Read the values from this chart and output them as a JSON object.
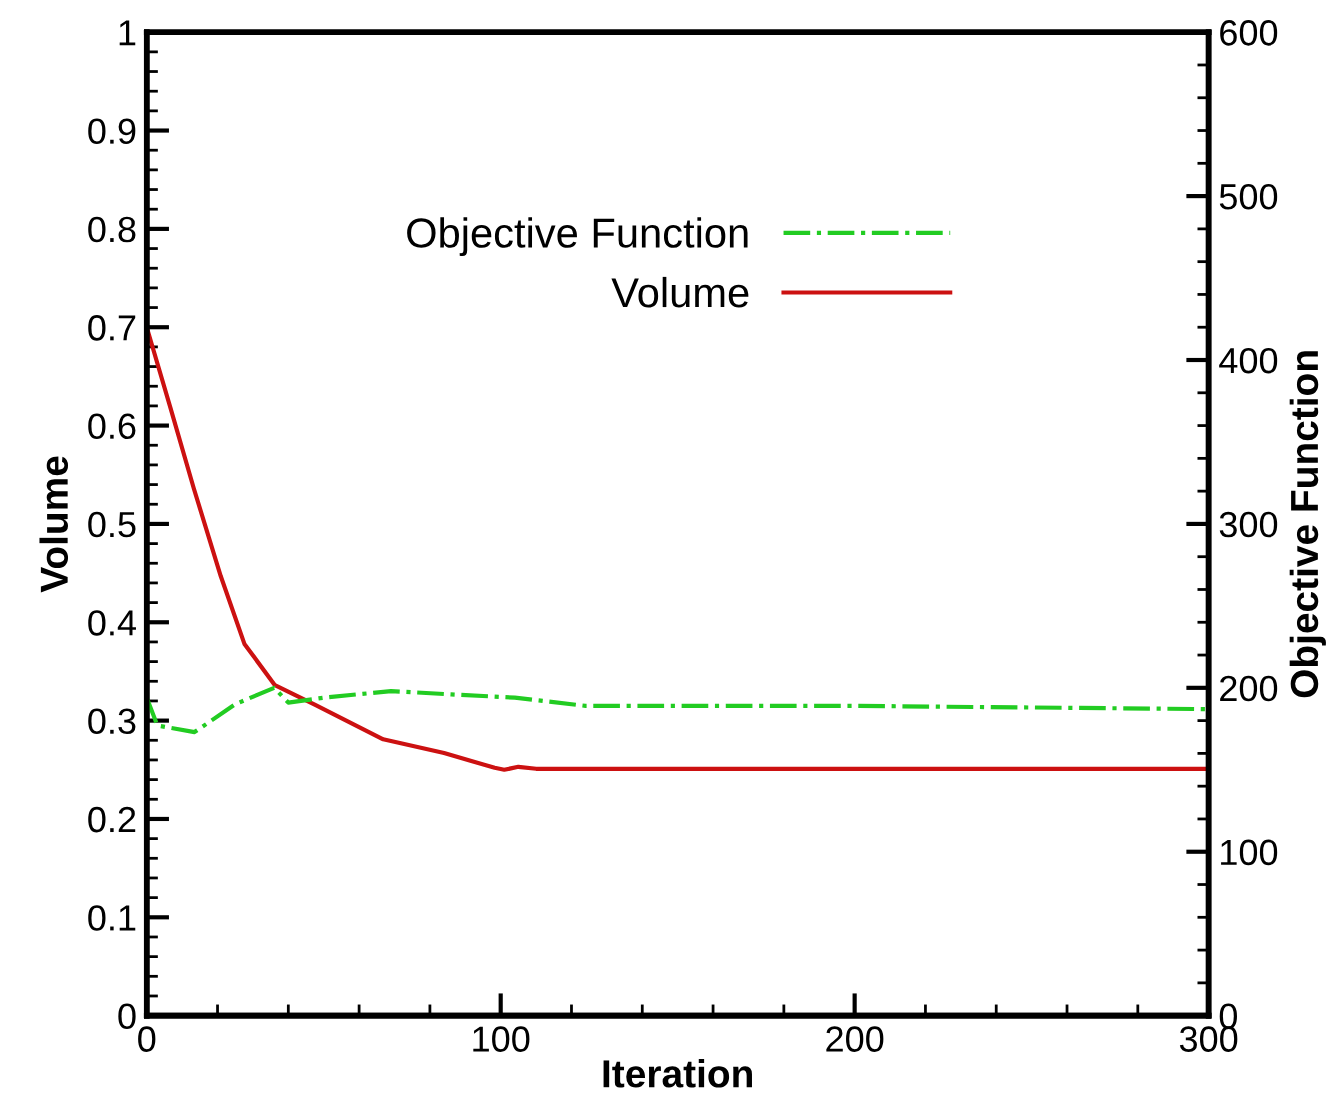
{
  "chart_data": {
    "type": "line",
    "xlabel": "Iteration",
    "ylabel": "Volume",
    "y2label": "Objective Function",
    "xlim": [
      0,
      300
    ],
    "xticks": [
      0,
      100,
      200,
      300
    ],
    "ylim": [
      0,
      1
    ],
    "yticks": [
      0,
      0.1,
      0.2,
      0.3,
      0.4,
      0.5,
      0.6,
      0.7,
      0.8,
      0.9,
      1
    ],
    "y2lim": [
      0,
      600
    ],
    "y2ticks": [
      0,
      100,
      200,
      300,
      400,
      500,
      600
    ],
    "legend": "top",
    "grid": false,
    "series": [
      {
        "name": "Objective Function",
        "color": "#22cc22",
        "axis": "y2",
        "line_style": "dashdot",
        "x": [
          0,
          3,
          13.5,
          25,
          36,
          40,
          50,
          69,
          86,
          104,
          124,
          150,
          200,
          250,
          300
        ],
        "values": [
          194,
          177,
          173,
          190,
          200,
          191,
          194,
          198,
          196,
          194,
          189,
          189,
          189,
          188,
          187
        ]
      },
      {
        "name": "Volume",
        "color": "#cc1111",
        "axis": "y",
        "line_style": "solid",
        "x": [
          0,
          6.7,
          13.3,
          20.9,
          27.6,
          36.2,
          47.6,
          66.8,
          84,
          98.3,
          101,
          105,
          110,
          150,
          200,
          250,
          300
        ],
        "values": [
          0.7,
          0.618,
          0.536,
          0.447,
          0.378,
          0.336,
          0.316,
          0.281,
          0.267,
          0.252,
          0.25,
          0.253,
          0.251,
          0.251,
          0.251,
          0.251,
          0.251
        ]
      }
    ]
  }
}
